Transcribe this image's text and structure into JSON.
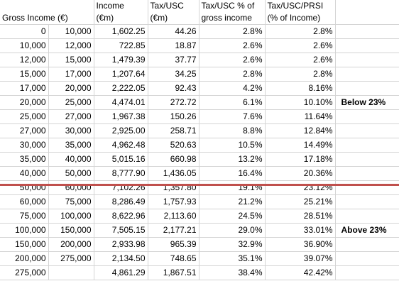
{
  "headers": {
    "gross_income": "Gross Income (€)",
    "income_line1": "Income",
    "income_line2": "(€m)",
    "tax_line1": "Tax/USC",
    "tax_line2": "(€m)",
    "pct_line1": "Tax/USC % of",
    "pct_line2": "gross income",
    "prsi_line1": "Tax/USC/PRSI",
    "prsi_line2": "(% of Income)"
  },
  "rows": [
    {
      "from": "0",
      "to": "10,000",
      "income": "1,602.25",
      "tax": "44.26",
      "pct": "2.8%",
      "prsi": "2.8%",
      "note": ""
    },
    {
      "from": "10,000",
      "to": "12,000",
      "income": "722.85",
      "tax": "18.87",
      "pct": "2.6%",
      "prsi": "2.6%",
      "note": ""
    },
    {
      "from": "12,000",
      "to": "15,000",
      "income": "1,479.39",
      "tax": "37.77",
      "pct": "2.6%",
      "prsi": "2.6%",
      "note": ""
    },
    {
      "from": "15,000",
      "to": "17,000",
      "income": "1,207.64",
      "tax": "34.25",
      "pct": "2.8%",
      "prsi": "2.8%",
      "note": ""
    },
    {
      "from": "17,000",
      "to": "20,000",
      "income": "2,222.05",
      "tax": "92.43",
      "pct": "4.2%",
      "prsi": "8.16%",
      "note": ""
    },
    {
      "from": "20,000",
      "to": "25,000",
      "income": "4,474.01",
      "tax": "272.72",
      "pct": "6.1%",
      "prsi": "10.10%",
      "note": "Below 23%"
    },
    {
      "from": "25,000",
      "to": "27,000",
      "income": "1,967.38",
      "tax": "150.26",
      "pct": "7.6%",
      "prsi": "11.64%",
      "note": ""
    },
    {
      "from": "27,000",
      "to": "30,000",
      "income": "2,925.00",
      "tax": "258.71",
      "pct": "8.8%",
      "prsi": "12.84%",
      "note": ""
    },
    {
      "from": "30,000",
      "to": "35,000",
      "income": "4,962.48",
      "tax": "520.63",
      "pct": "10.5%",
      "prsi": "14.49%",
      "note": ""
    },
    {
      "from": "35,000",
      "to": "40,000",
      "income": "5,015.16",
      "tax": "660.98",
      "pct": "13.2%",
      "prsi": "17.18%",
      "note": ""
    },
    {
      "from": "40,000",
      "to": "50,000",
      "income": "8,777.90",
      "tax": "1,436.05",
      "pct": "16.4%",
      "prsi": "20.36%",
      "note": ""
    },
    {
      "from": "50,000",
      "to": "60,000",
      "income": "7,102.26",
      "tax": "1,357.80",
      "pct": "19.1%",
      "prsi": "23.12%",
      "note": ""
    },
    {
      "from": "60,000",
      "to": "75,000",
      "income": "8,286.49",
      "tax": "1,757.93",
      "pct": "21.2%",
      "prsi": "25.21%",
      "note": ""
    },
    {
      "from": "75,000",
      "to": "100,000",
      "income": "8,622.96",
      "tax": "2,113.60",
      "pct": "24.5%",
      "prsi": "28.51%",
      "note": ""
    },
    {
      "from": "100,000",
      "to": "150,000",
      "income": "7,505.15",
      "tax": "2,177.21",
      "pct": "29.0%",
      "prsi": "33.01%",
      "note": "Above 23%"
    },
    {
      "from": "150,000",
      "to": "200,000",
      "income": "2,933.98",
      "tax": "965.39",
      "pct": "32.9%",
      "prsi": "36.90%",
      "note": ""
    },
    {
      "from": "200,000",
      "to": "275,000",
      "income": "2,134.50",
      "tax": "748.65",
      "pct": "35.1%",
      "prsi": "39.07%",
      "note": ""
    },
    {
      "from": "275,000",
      "to": "",
      "income": "4,861.29",
      "tax": "1,867.51",
      "pct": "38.4%",
      "prsi": "42.42%",
      "note": ""
    }
  ],
  "colors": {
    "divider": "#c0504d",
    "gridline": "#d4d4d4"
  }
}
